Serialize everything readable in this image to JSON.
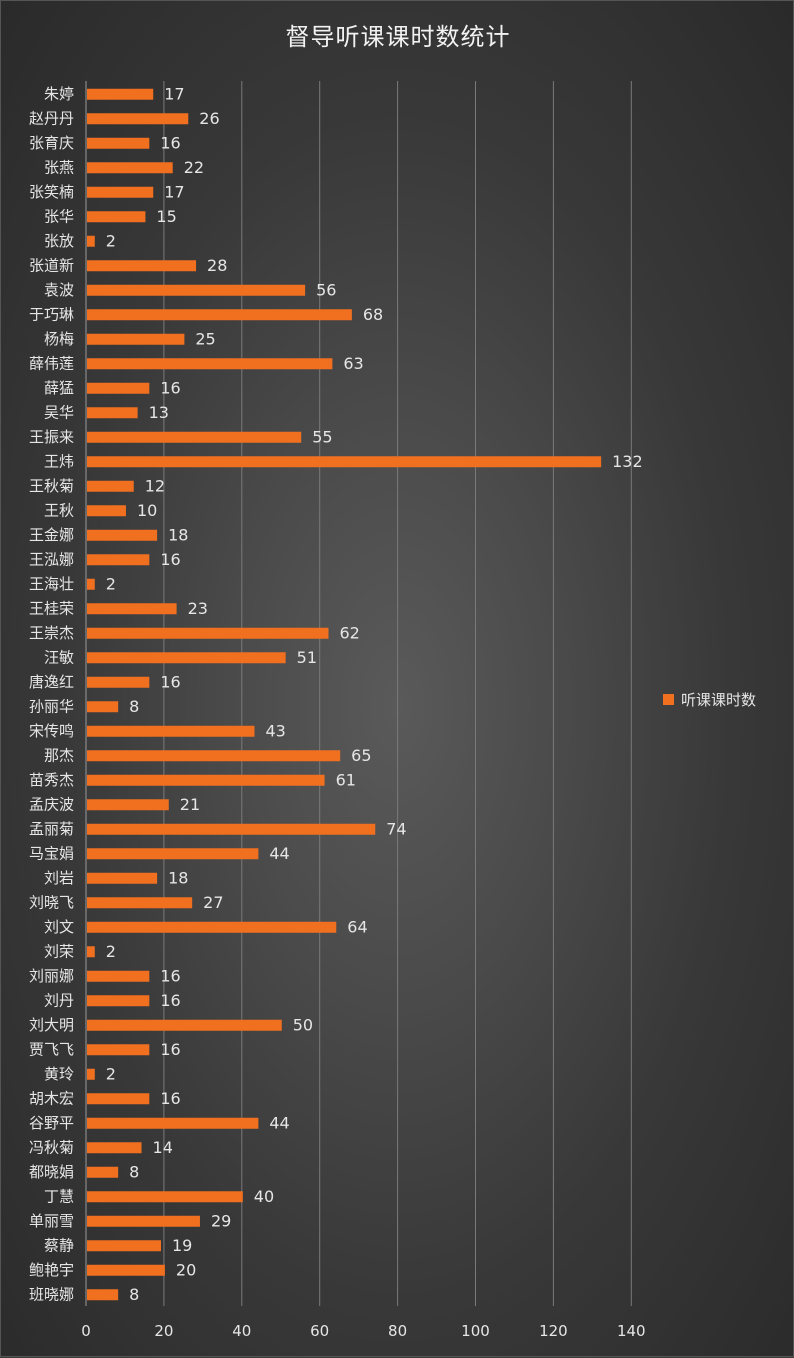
{
  "colors": {
    "bar": "#f07020",
    "grid": "#7a7a7a",
    "text": "#e6e6e6"
  },
  "chart_data": {
    "type": "bar",
    "orientation": "horizontal",
    "title": "督导听课课时数统计",
    "categories": [
      "朱婷",
      "赵丹丹",
      "张育庆",
      "张燕",
      "张笑楠",
      "张华",
      "张放",
      "张道新",
      "袁波",
      "于巧琳",
      "杨梅",
      "薛伟莲",
      "薛猛",
      "吴华",
      "王振来",
      "王炜",
      "王秋菊",
      "王秋",
      "王金娜",
      "王泓娜",
      "王海壮",
      "王桂荣",
      "王崇杰",
      "汪敏",
      "唐逸红",
      "孙丽华",
      "宋传鸣",
      "那杰",
      "苗秀杰",
      "孟庆波",
      "孟丽菊",
      "马宝娟",
      "刘岩",
      "刘晓飞",
      "刘文",
      "刘荣",
      "刘丽娜",
      "刘丹",
      "刘大明",
      "贾飞飞",
      "黄玲",
      "胡木宏",
      "谷野平",
      "冯秋菊",
      "都晓娟",
      "丁慧",
      "单丽雪",
      "蔡静",
      "鲍艳宇",
      "班晓娜"
    ],
    "series": [
      {
        "name": "听课课时数",
        "values": [
          17,
          26,
          16,
          22,
          17,
          15,
          2,
          28,
          56,
          68,
          25,
          63,
          16,
          13,
          55,
          132,
          12,
          10,
          18,
          16,
          2,
          23,
          62,
          51,
          16,
          8,
          43,
          65,
          61,
          21,
          74,
          44,
          18,
          27,
          64,
          2,
          16,
          16,
          50,
          16,
          2,
          16,
          44,
          14,
          8,
          40,
          29,
          19,
          20,
          8
        ]
      }
    ],
    "xlim": [
      0,
      140
    ],
    "xticks": [
      0,
      20,
      40,
      60,
      80,
      100,
      120,
      140
    ],
    "grid": true,
    "legend_position": "right",
    "data_labels": true
  }
}
